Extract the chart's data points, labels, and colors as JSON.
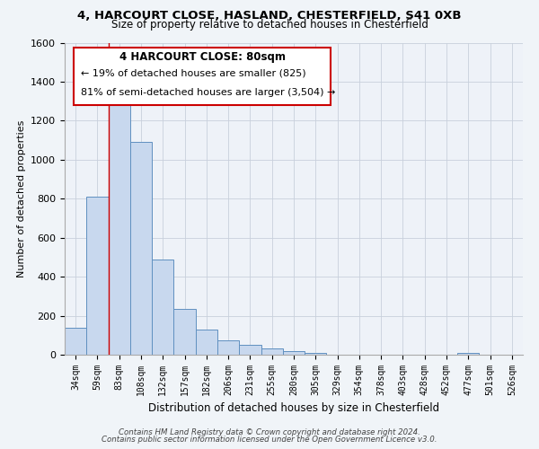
{
  "title": "4, HARCOURT CLOSE, HASLAND, CHESTERFIELD, S41 0XB",
  "subtitle": "Size of property relative to detached houses in Chesterfield",
  "xlabel": "Distribution of detached houses by size in Chesterfield",
  "ylabel": "Number of detached properties",
  "bar_color": "#c8d8ee",
  "bar_edge_color": "#6090c0",
  "bin_labels": [
    "34sqm",
    "59sqm",
    "83sqm",
    "108sqm",
    "132sqm",
    "157sqm",
    "182sqm",
    "206sqm",
    "231sqm",
    "255sqm",
    "280sqm",
    "305sqm",
    "329sqm",
    "354sqm",
    "378sqm",
    "403sqm",
    "428sqm",
    "452sqm",
    "477sqm",
    "501sqm",
    "526sqm"
  ],
  "bar_heights": [
    140,
    810,
    1290,
    1090,
    490,
    235,
    130,
    75,
    50,
    30,
    20,
    10,
    0,
    0,
    0,
    0,
    0,
    0,
    10,
    0,
    0
  ],
  "ylim": [
    0,
    1600
  ],
  "yticks": [
    0,
    200,
    400,
    600,
    800,
    1000,
    1200,
    1400,
    1600
  ],
  "vline_x_idx": 2,
  "vline_color": "#cc0000",
  "annotation_title": "4 HARCOURT CLOSE: 80sqm",
  "annotation_line1": "← 19% of detached houses are smaller (825)",
  "annotation_line2": "81% of semi-detached houses are larger (3,504) →",
  "footer1": "Contains HM Land Registry data © Crown copyright and database right 2024.",
  "footer2": "Contains public sector information licensed under the Open Government Licence v3.0.",
  "background_color": "#f0f4f8",
  "plot_background": "#eef2f8"
}
